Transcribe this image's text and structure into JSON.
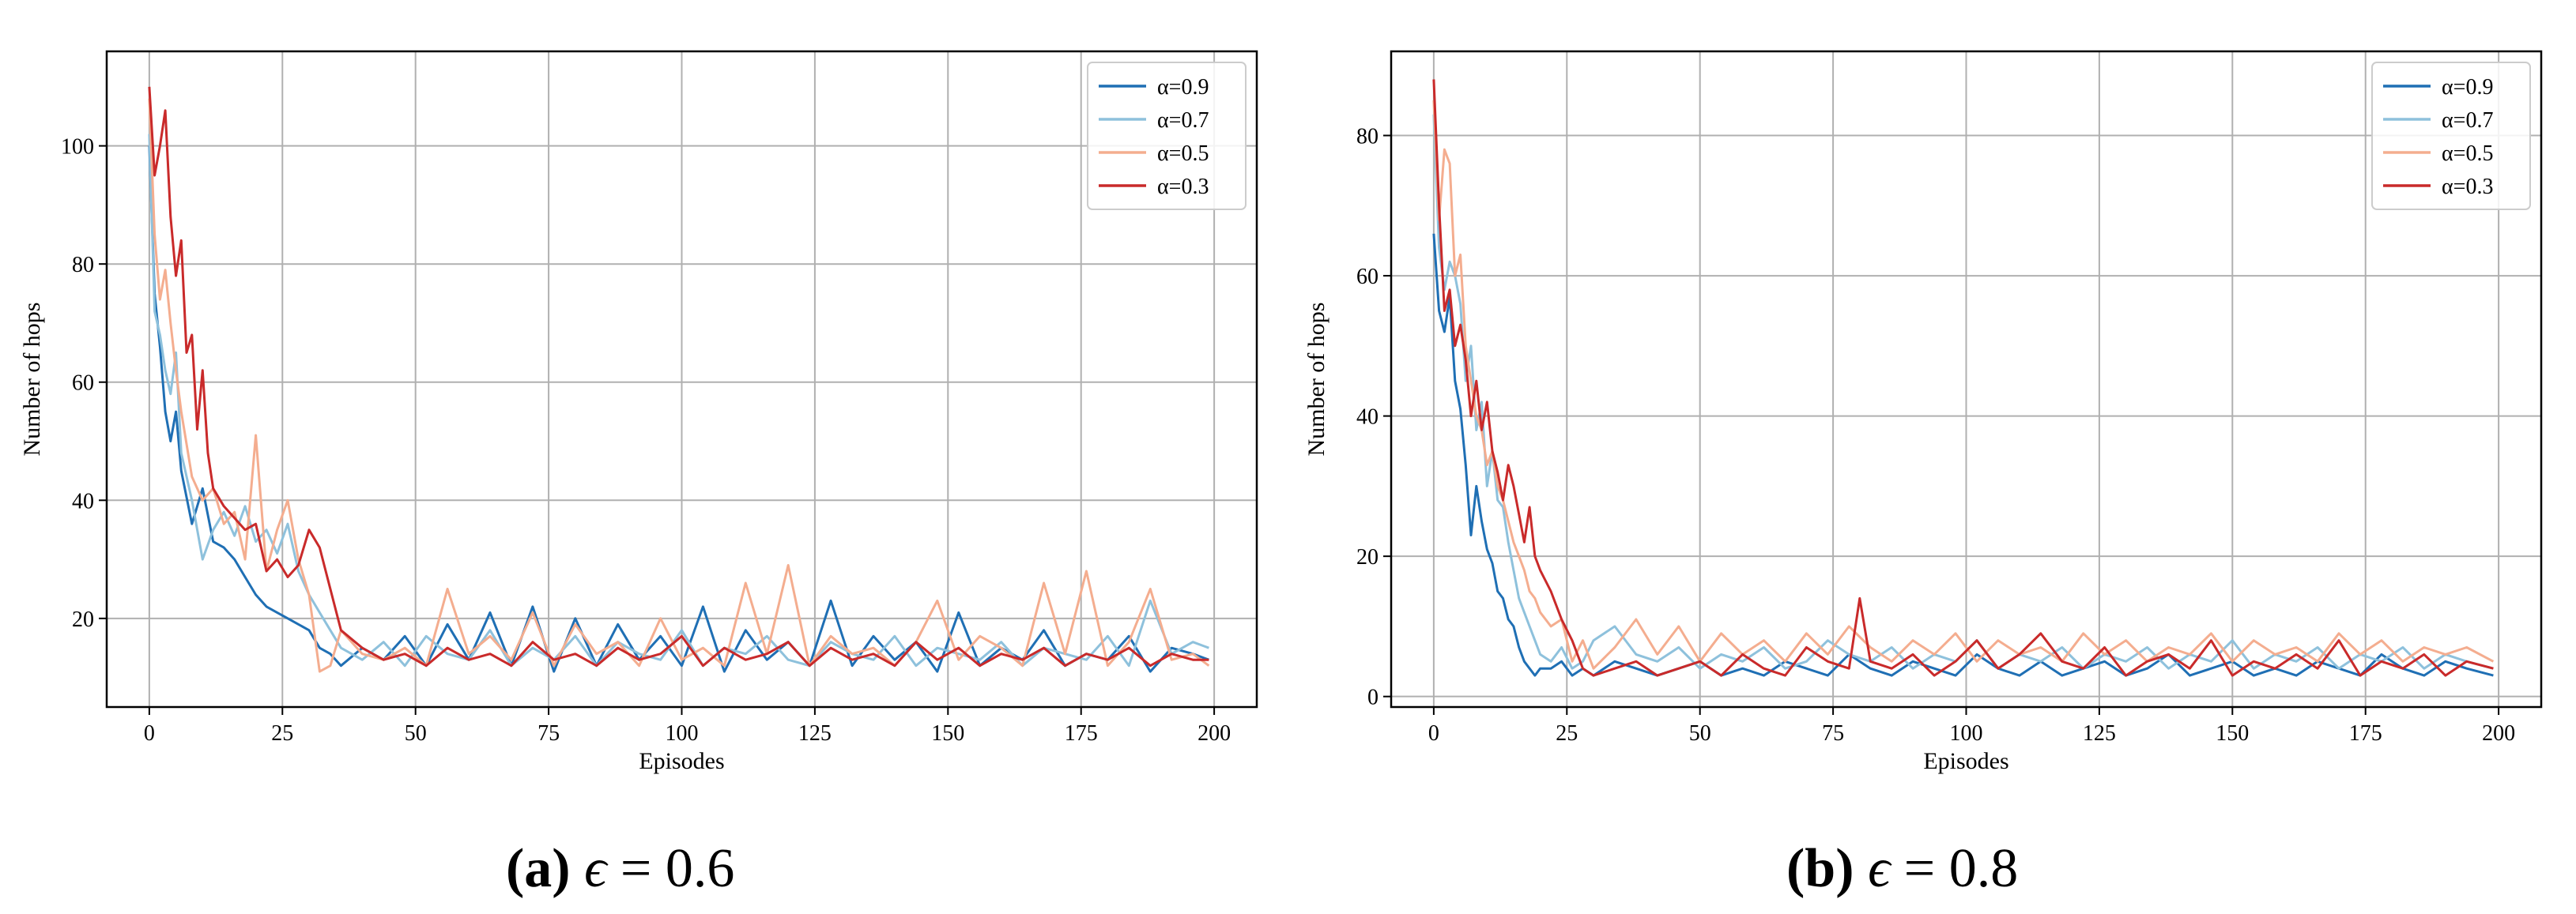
{
  "chart_data": [
    {
      "type": "line",
      "caption": {
        "label": "(a)",
        "symbol": "ϵ",
        "equals": "=",
        "value": "0.6"
      },
      "xlabel": "Episodes",
      "ylabel": "Number of hops",
      "xlim": [
        -8,
        208
      ],
      "ylim": [
        5,
        116
      ],
      "xticks": [
        0,
        25,
        50,
        75,
        100,
        125,
        150,
        175,
        200
      ],
      "yticks": [
        20,
        40,
        60,
        80,
        100
      ],
      "grid": true,
      "legend_position": "top-right",
      "series": [
        {
          "name": "α=0.9",
          "color": "#1f6fb4",
          "x": [
            0,
            1,
            2,
            3,
            4,
            5,
            6,
            8,
            10,
            12,
            14,
            16,
            18,
            20,
            22,
            24,
            26,
            28,
            30,
            32,
            34,
            36,
            40,
            44,
            48,
            52,
            56,
            60,
            64,
            68,
            72,
            76,
            80,
            84,
            88,
            92,
            96,
            100,
            104,
            108,
            112,
            116,
            120,
            124,
            128,
            132,
            136,
            140,
            144,
            148,
            152,
            156,
            160,
            164,
            168,
            172,
            176,
            180,
            184,
            188,
            192,
            196,
            199
          ],
          "y": [
            100,
            75,
            66,
            55,
            50,
            55,
            45,
            36,
            42,
            33,
            32,
            30,
            27,
            24,
            22,
            21,
            20,
            19,
            18,
            15,
            14,
            12,
            15,
            13,
            17,
            12,
            19,
            13,
            21,
            12,
            22,
            11,
            20,
            12,
            19,
            13,
            17,
            12,
            22,
            11,
            18,
            13,
            16,
            12,
            23,
            12,
            17,
            13,
            16,
            11,
            21,
            12,
            15,
            13,
            18,
            12,
            14,
            13,
            17,
            11,
            15,
            14,
            13
          ]
        },
        {
          "name": "α=0.7",
          "color": "#8ec1dc",
          "x": [
            0,
            1,
            2,
            3,
            4,
            5,
            6,
            8,
            10,
            12,
            14,
            16,
            18,
            20,
            22,
            24,
            26,
            28,
            30,
            32,
            34,
            36,
            40,
            44,
            48,
            52,
            56,
            60,
            64,
            68,
            72,
            76,
            80,
            84,
            88,
            92,
            96,
            100,
            104,
            108,
            112,
            116,
            120,
            124,
            128,
            132,
            136,
            140,
            144,
            148,
            152,
            156,
            160,
            164,
            168,
            172,
            176,
            180,
            184,
            188,
            192,
            196,
            199
          ],
          "y": [
            102,
            72,
            68,
            62,
            58,
            65,
            48,
            40,
            30,
            35,
            38,
            34,
            39,
            33,
            35,
            31,
            36,
            28,
            24,
            21,
            18,
            15,
            13,
            16,
            12,
            17,
            14,
            13,
            18,
            12,
            15,
            13,
            17,
            12,
            16,
            14,
            13,
            18,
            12,
            15,
            14,
            17,
            13,
            12,
            16,
            14,
            13,
            17,
            12,
            15,
            14,
            13,
            16,
            12,
            15,
            14,
            13,
            17,
            12,
            23,
            14,
            16,
            15
          ]
        },
        {
          "name": "α=0.5",
          "color": "#f4ad8f",
          "x": [
            0,
            1,
            2,
            3,
            4,
            5,
            6,
            8,
            10,
            12,
            14,
            16,
            18,
            20,
            22,
            24,
            26,
            28,
            30,
            32,
            34,
            36,
            40,
            44,
            48,
            52,
            56,
            60,
            64,
            68,
            72,
            76,
            80,
            84,
            88,
            92,
            96,
            100,
            104,
            108,
            112,
            116,
            120,
            124,
            128,
            132,
            136,
            140,
            144,
            148,
            152,
            156,
            160,
            164,
            168,
            172,
            176,
            180,
            184,
            188,
            192,
            196,
            199
          ],
          "y": [
            108,
            85,
            74,
            79,
            70,
            62,
            55,
            44,
            40,
            42,
            36,
            38,
            30,
            51,
            28,
            35,
            40,
            30,
            24,
            11,
            12,
            18,
            14,
            13,
            15,
            12,
            25,
            14,
            17,
            13,
            21,
            12,
            19,
            14,
            16,
            12,
            20,
            13,
            15,
            12,
            26,
            14,
            29,
            12,
            17,
            14,
            15,
            12,
            16,
            23,
            13,
            17,
            15,
            12,
            26,
            14,
            28,
            12,
            16,
            25,
            13,
            14,
            12
          ]
        },
        {
          "name": "α=0.3",
          "color": "#c92a2a",
          "x": [
            0,
            1,
            2,
            3,
            4,
            5,
            6,
            7,
            8,
            9,
            10,
            11,
            12,
            14,
            16,
            18,
            20,
            22,
            24,
            26,
            28,
            30,
            32,
            34,
            36,
            40,
            44,
            48,
            52,
            56,
            60,
            64,
            68,
            72,
            76,
            80,
            84,
            88,
            92,
            96,
            100,
            104,
            108,
            112,
            116,
            120,
            124,
            128,
            132,
            136,
            140,
            144,
            148,
            152,
            156,
            160,
            164,
            168,
            172,
            176,
            180,
            184,
            188,
            192,
            196,
            199
          ],
          "y": [
            110,
            95,
            100,
            106,
            88,
            78,
            84,
            65,
            68,
            52,
            62,
            48,
            42,
            39,
            37,
            35,
            36,
            28,
            30,
            27,
            29,
            35,
            32,
            25,
            18,
            15,
            13,
            14,
            12,
            15,
            13,
            14,
            12,
            16,
            13,
            14,
            12,
            15,
            13,
            14,
            17,
            12,
            15,
            13,
            14,
            16,
            12,
            15,
            13,
            14,
            12,
            16,
            13,
            15,
            12,
            14,
            13,
            15,
            12,
            14,
            13,
            15,
            12,
            14,
            13,
            13
          ]
        }
      ]
    },
    {
      "type": "line",
      "caption": {
        "label": "(b)",
        "symbol": "ϵ",
        "equals": "=",
        "value": "0.8"
      },
      "xlabel": "Episodes",
      "ylabel": "Number of hops",
      "xlim": [
        -8,
        208
      ],
      "ylim": [
        -1.5,
        92
      ],
      "xticks": [
        0,
        25,
        50,
        75,
        100,
        125,
        150,
        175,
        200
      ],
      "yticks": [
        0,
        20,
        40,
        60,
        80
      ],
      "grid": true,
      "legend_position": "top-right",
      "series": [
        {
          "name": "α=0.9",
          "color": "#1f6fb4",
          "x": [
            0,
            1,
            2,
            3,
            4,
            5,
            6,
            7,
            8,
            9,
            10,
            11,
            12,
            13,
            14,
            15,
            16,
            17,
            18,
            19,
            20,
            22,
            24,
            26,
            28,
            30,
            34,
            38,
            42,
            46,
            50,
            54,
            58,
            62,
            66,
            70,
            74,
            78,
            82,
            86,
            90,
            94,
            98,
            102,
            106,
            110,
            114,
            118,
            122,
            126,
            130,
            134,
            138,
            142,
            146,
            150,
            154,
            158,
            162,
            166,
            170,
            174,
            178,
            182,
            186,
            190,
            194,
            199
          ],
          "y": [
            66,
            55,
            52,
            57,
            45,
            41,
            33,
            23,
            30,
            25,
            21,
            19,
            15,
            14,
            11,
            10,
            7,
            5,
            4,
            3,
            4,
            4,
            5,
            3,
            4,
            3,
            5,
            4,
            3,
            4,
            5,
            3,
            4,
            3,
            5,
            4,
            3,
            6,
            4,
            3,
            5,
            4,
            3,
            6,
            4,
            3,
            5,
            3,
            4,
            5,
            3,
            4,
            6,
            3,
            4,
            5,
            3,
            4,
            3,
            5,
            4,
            3,
            6,
            4,
            3,
            5,
            4,
            3
          ]
        },
        {
          "name": "α=0.7",
          "color": "#8ec1dc",
          "x": [
            0,
            1,
            2,
            3,
            4,
            5,
            6,
            7,
            8,
            9,
            10,
            11,
            12,
            13,
            14,
            15,
            16,
            17,
            18,
            19,
            20,
            22,
            24,
            26,
            28,
            30,
            34,
            38,
            42,
            46,
            50,
            54,
            58,
            62,
            66,
            70,
            74,
            78,
            82,
            86,
            90,
            94,
            98,
            102,
            106,
            110,
            114,
            118,
            122,
            126,
            130,
            134,
            138,
            142,
            146,
            150,
            154,
            158,
            162,
            166,
            170,
            174,
            178,
            182,
            186,
            190,
            194,
            199
          ],
          "y": [
            83,
            64,
            58,
            62,
            60,
            56,
            45,
            50,
            38,
            42,
            30,
            35,
            28,
            27,
            22,
            18,
            14,
            12,
            10,
            8,
            6,
            5,
            7,
            4,
            5,
            8,
            10,
            6,
            5,
            7,
            4,
            6,
            5,
            7,
            4,
            5,
            8,
            6,
            5,
            7,
            4,
            6,
            5,
            8,
            4,
            6,
            5,
            7,
            4,
            6,
            5,
            7,
            4,
            6,
            5,
            8,
            4,
            6,
            5,
            7,
            4,
            6,
            5,
            7,
            4,
            6,
            5,
            4
          ]
        },
        {
          "name": "α=0.5",
          "color": "#f4ad8f",
          "x": [
            0,
            1,
            2,
            3,
            4,
            5,
            6,
            7,
            8,
            9,
            10,
            11,
            12,
            13,
            14,
            15,
            16,
            17,
            18,
            19,
            20,
            22,
            24,
            26,
            28,
            30,
            34,
            38,
            42,
            46,
            50,
            54,
            58,
            62,
            66,
            70,
            74,
            78,
            82,
            86,
            90,
            94,
            98,
            102,
            106,
            110,
            114,
            118,
            122,
            126,
            130,
            134,
            138,
            142,
            146,
            150,
            154,
            158,
            162,
            166,
            170,
            174,
            178,
            182,
            186,
            190,
            194,
            199
          ],
          "y": [
            85,
            68,
            78,
            76,
            60,
            63,
            50,
            45,
            40,
            38,
            33,
            35,
            30,
            28,
            25,
            22,
            20,
            18,
            15,
            14,
            12,
            10,
            11,
            5,
            8,
            4,
            7,
            11,
            6,
            10,
            5,
            9,
            6,
            8,
            5,
            9,
            6,
            10,
            7,
            5,
            8,
            6,
            9,
            5,
            8,
            6,
            7,
            5,
            9,
            6,
            8,
            5,
            7,
            6,
            9,
            5,
            8,
            6,
            7,
            5,
            9,
            6,
            8,
            5,
            7,
            6,
            7,
            5
          ]
        },
        {
          "name": "α=0.3",
          "color": "#c92a2a",
          "x": [
            0,
            1,
            2,
            3,
            4,
            5,
            6,
            7,
            8,
            9,
            10,
            11,
            12,
            13,
            14,
            15,
            16,
            17,
            18,
            19,
            20,
            22,
            24,
            26,
            28,
            30,
            34,
            38,
            42,
            46,
            50,
            54,
            58,
            62,
            66,
            70,
            74,
            78,
            80,
            82,
            86,
            90,
            94,
            98,
            102,
            106,
            110,
            114,
            118,
            122,
            126,
            130,
            134,
            138,
            142,
            146,
            150,
            154,
            158,
            162,
            166,
            170,
            174,
            178,
            182,
            186,
            190,
            194,
            199
          ],
          "y": [
            88,
            70,
            55,
            58,
            50,
            53,
            48,
            40,
            45,
            38,
            42,
            35,
            32,
            28,
            33,
            30,
            26,
            22,
            27,
            20,
            18,
            15,
            11,
            8,
            4,
            3,
            4,
            5,
            3,
            4,
            5,
            3,
            6,
            4,
            3,
            7,
            5,
            4,
            14,
            5,
            4,
            6,
            3,
            5,
            8,
            4,
            6,
            9,
            5,
            4,
            7,
            3,
            5,
            6,
            4,
            8,
            3,
            5,
            4,
            6,
            4,
            8,
            3,
            5,
            4,
            6,
            3,
            5,
            4
          ]
        }
      ]
    }
  ]
}
